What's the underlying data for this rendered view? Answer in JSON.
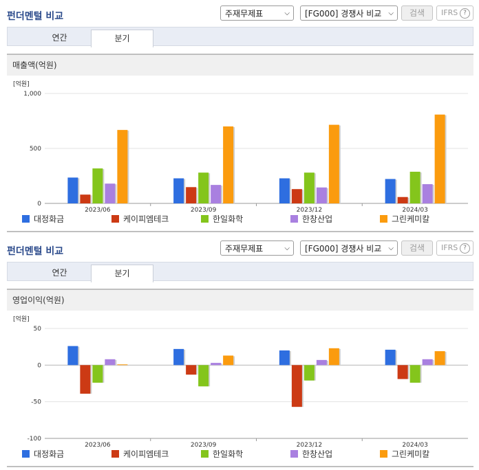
{
  "panels": [
    {
      "title": "펀더멘털 비교",
      "select1": "주재무제표",
      "select2": "[FG000] 경쟁사 비교",
      "search_label": "검색",
      "ifrs_label": "IFRS",
      "tabs": [
        "연간",
        "분기"
      ],
      "active_tab": "분기",
      "section_title": "매출액(억원)"
    },
    {
      "title": "펀더멘털 비교",
      "select1": "주재무제표",
      "select2": "[FG000] 경쟁사 비교",
      "search_label": "검색",
      "ifrs_label": "IFRS",
      "tabs": [
        "연간",
        "분기"
      ],
      "active_tab": "분기",
      "section_title": "영업이익(억원)"
    }
  ],
  "colors": {
    "대정화금": "#2e6ee0",
    "케이피엠테크": "#cc3a14",
    "한일화학": "#84c51c",
    "한창산업": "#a980e0",
    "그린케미칼": "#fb9b0e"
  },
  "chart_data": [
    {
      "type": "bar",
      "unit": "[억원]",
      "categories": [
        "2023/06",
        "2023/09",
        "2023/12",
        "2024/03"
      ],
      "ylim": [
        0,
        1000
      ],
      "yticks": [
        "0",
        "500",
        "1,000"
      ],
      "ytick_values": [
        0,
        500,
        1000
      ],
      "series": [
        {
          "name": "대정화금",
          "values": [
            235,
            228,
            228,
            222
          ]
        },
        {
          "name": "케이피엠테크",
          "values": [
            80,
            148,
            130,
            58
          ]
        },
        {
          "name": "한일화학",
          "values": [
            318,
            280,
            280,
            288
          ]
        },
        {
          "name": "한창산업",
          "values": [
            180,
            168,
            145,
            175
          ]
        },
        {
          "name": "그린케미칼",
          "values": [
            668,
            700,
            715,
            808
          ]
        }
      ]
    },
    {
      "type": "bar",
      "unit": "[억원]",
      "categories": [
        "2023/06",
        "2023/09",
        "2023/12",
        "2024/03"
      ],
      "ylim": [
        -100,
        50
      ],
      "yticks": [
        "-100",
        "-50",
        "0",
        "50"
      ],
      "ytick_values": [
        -100,
        -50,
        0,
        50
      ],
      "series": [
        {
          "name": "대정화금",
          "values": [
            26,
            22,
            20,
            21
          ]
        },
        {
          "name": "케이피엠테크",
          "values": [
            -39,
            -13,
            -57,
            -19
          ]
        },
        {
          "name": "한일화학",
          "values": [
            -24,
            -29,
            -21,
            -24
          ]
        },
        {
          "name": "한창산업",
          "values": [
            8,
            3,
            7,
            8
          ]
        },
        {
          "name": "그린케미칼",
          "values": [
            1,
            13,
            23,
            19
          ]
        }
      ]
    }
  ]
}
